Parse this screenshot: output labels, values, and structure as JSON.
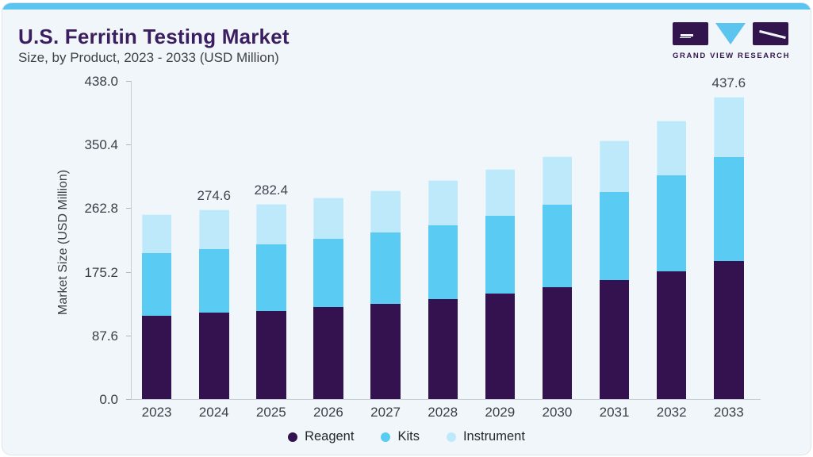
{
  "header": {
    "title": "U.S. Ferritin Testing Market",
    "subtitle": "Size, by Product, 2023 - 2033 (USD Million)"
  },
  "logo": {
    "brand": "GRAND VIEW RESEARCH",
    "icon_colors": {
      "blocks": "#33154E",
      "triangle": "#5BC4EF"
    }
  },
  "colors": {
    "card_background": "#F1F6FA",
    "accent_bar": "#5BC4EF",
    "title_text": "#3B1E60",
    "axis_text": "#3A3F47",
    "reagent": "#33124F",
    "kits": "#5ACCF4",
    "instrument": "#BEE9FA"
  },
  "chart_data": {
    "type": "bar",
    "stacked": true,
    "title": "U.S. Ferritin Testing Market Size, by Product, 2023 - 2033 (USD Million)",
    "ylabel": "Market Size (USD Million)",
    "xlabel": "",
    "ylim": [
      0,
      438
    ],
    "grid": false,
    "legend_position": "bottom",
    "yticks": [
      "438.0",
      "350.4",
      "262.8",
      "175.2",
      "87.6",
      "0.0"
    ],
    "categories": [
      "2023",
      "2024",
      "2025",
      "2026",
      "2027",
      "2028",
      "2029",
      "2030",
      "2031",
      "2032",
      "2033"
    ],
    "series": [
      {
        "name": "Reagent",
        "color": "#33124F",
        "values": [
          120.2,
          125.2,
          127.9,
          132.8,
          137.4,
          144.3,
          152.8,
          161.6,
          171.9,
          185.3,
          199.9
        ]
      },
      {
        "name": "Kits",
        "color": "#5ACCF4",
        "values": [
          91.2,
          91.9,
          96.5,
          98.8,
          103.4,
          107.3,
          112.1,
          120.0,
          128.4,
          139.0,
          150.5
        ]
      },
      {
        "name": "Instrument",
        "color": "#BEE9FA",
        "values": [
          56.3,
          57.5,
          58.0,
          60.2,
          61.7,
          65.8,
          67.8,
          70.4,
          74.7,
          78.5,
          87.2
        ]
      }
    ],
    "totals": [
      267.7,
      274.6,
      282.4,
      291.8,
      302.5,
      317.4,
      332.7,
      352.0,
      375.0,
      402.8,
      437.6
    ],
    "total_labels": [
      "",
      "274.6",
      "282.4",
      "",
      "",
      "",
      "",
      "",
      "",
      "",
      "437.6"
    ]
  }
}
